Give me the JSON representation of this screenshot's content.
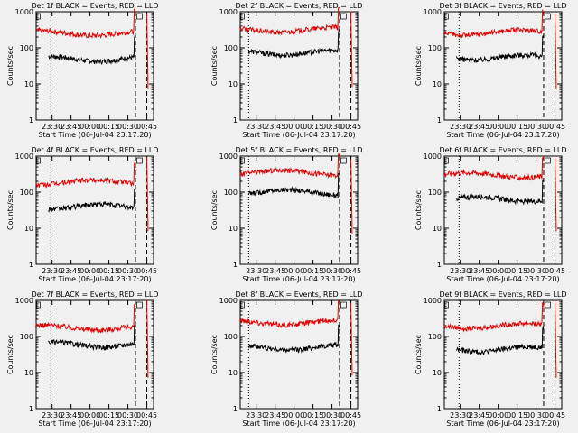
{
  "colors": {
    "events": "#000000",
    "lld": "#e00000",
    "axis": "#000000",
    "background": "#f0f0f0"
  },
  "common": {
    "ylabel": "Counts/sec",
    "xlabel": "Start Time (06-Jul-04 23:17:20)",
    "time_ticks": [
      "23:30",
      "23:45",
      "00:00",
      "00:15",
      "00:30",
      "00:45"
    ],
    "y_tick_labels": [
      "1",
      "10",
      "100",
      "1000"
    ],
    "y_log_range": [
      1,
      1000
    ],
    "x_range_minutes_from_start": [
      0,
      93
    ],
    "title_suffix": "BLACK = Events, RED = LLD"
  },
  "chart_data": [
    {
      "type": "line",
      "title": "Det 1f BLACK = Events, RED = LLD",
      "x_time_ticks": [
        "23:30",
        "23:45",
        "00:00",
        "00:15",
        "00:30",
        "00:45"
      ],
      "y_scale": "log",
      "series": [
        {
          "name": "Events",
          "color": "#000000",
          "start": "23:27",
          "end": "00:36",
          "level": 50
        },
        {
          "name": "LLD",
          "color": "#e00000",
          "start": "23:17",
          "end": "00:36",
          "level": 260
        }
      ],
      "vlines": [
        {
          "time": "23:29",
          "style": "dotted"
        },
        {
          "time": "00:36",
          "style": "dashed"
        },
        {
          "time": "00:45",
          "style": "dashed"
        }
      ]
    },
    {
      "type": "line",
      "title": "Det 2f BLACK = Events, RED = LLD",
      "x_time_ticks": [
        "23:30",
        "23:45",
        "00:00",
        "00:15",
        "00:30",
        "00:45"
      ],
      "y_scale": "log",
      "series": [
        {
          "name": "Events",
          "color": "#000000",
          "start": "23:24",
          "end": "00:36",
          "level": 75
        },
        {
          "name": "LLD",
          "color": "#e00000",
          "start": "23:17",
          "end": "00:36",
          "level": 320
        }
      ],
      "vlines": [
        {
          "time": "23:24",
          "style": "dotted"
        },
        {
          "time": "00:36",
          "style": "dashed"
        },
        {
          "time": "00:45",
          "style": "dashed"
        }
      ]
    },
    {
      "type": "line",
      "title": "Det 3f BLACK = Events, RED = LLD",
      "x_time_ticks": [
        "23:30",
        "23:45",
        "00:00",
        "00:15",
        "00:30",
        "00:45"
      ],
      "y_scale": "log",
      "series": [
        {
          "name": "Events",
          "color": "#000000",
          "start": "23:27",
          "end": "00:36",
          "level": 55
        },
        {
          "name": "LLD",
          "color": "#e00000",
          "start": "23:17",
          "end": "00:36",
          "level": 270
        }
      ],
      "vlines": [
        {
          "time": "23:29",
          "style": "dotted"
        },
        {
          "time": "00:36",
          "style": "dashed"
        },
        {
          "time": "00:45",
          "style": "dashed"
        }
      ]
    },
    {
      "type": "line",
      "title": "Det 4f BLACK = Events, RED = LLD",
      "x_time_ticks": [
        "23:30",
        "23:45",
        "00:00",
        "00:15",
        "00:30",
        "00:45"
      ],
      "y_scale": "log",
      "series": [
        {
          "name": "Events",
          "color": "#000000",
          "start": "23:27",
          "end": "00:36",
          "level": 40
        },
        {
          "name": "LLD",
          "color": "#e00000",
          "start": "23:17",
          "end": "00:36",
          "level": 190
        }
      ],
      "vlines": [
        {
          "time": "23:29",
          "style": "dotted"
        },
        {
          "time": "00:36",
          "style": "dashed"
        },
        {
          "time": "00:45",
          "style": "dashed"
        }
      ]
    },
    {
      "type": "line",
      "title": "Det 5f BLACK = Events, RED = LLD",
      "x_time_ticks": [
        "23:30",
        "23:45",
        "00:00",
        "00:15",
        "00:30",
        "00:45"
      ],
      "y_scale": "log",
      "series": [
        {
          "name": "Events",
          "color": "#000000",
          "start": "23:24",
          "end": "00:36",
          "level": 100
        },
        {
          "name": "LLD",
          "color": "#e00000",
          "start": "23:17",
          "end": "00:36",
          "level": 350
        }
      ],
      "vlines": [
        {
          "time": "23:24",
          "style": "dotted"
        },
        {
          "time": "00:36",
          "style": "dashed"
        },
        {
          "time": "00:45",
          "style": "dashed"
        }
      ]
    },
    {
      "type": "line",
      "title": "Det 6f BLACK = Events, RED = LLD",
      "x_time_ticks": [
        "23:30",
        "23:45",
        "00:00",
        "00:15",
        "00:30",
        "00:45"
      ],
      "y_scale": "log",
      "series": [
        {
          "name": "Events",
          "color": "#000000",
          "start": "23:27",
          "end": "00:36",
          "level": 65
        },
        {
          "name": "LLD",
          "color": "#e00000",
          "start": "23:17",
          "end": "00:36",
          "level": 300
        }
      ],
      "vlines": [
        {
          "time": "23:29",
          "style": "dotted"
        },
        {
          "time": "00:36",
          "style": "dashed"
        },
        {
          "time": "00:45",
          "style": "dashed"
        }
      ]
    },
    {
      "type": "line",
      "title": "Det 7f BLACK = Events, RED = LLD",
      "x_time_ticks": [
        "23:30",
        "23:45",
        "00:00",
        "00:15",
        "00:30",
        "00:45"
      ],
      "y_scale": "log",
      "series": [
        {
          "name": "Events",
          "color": "#000000",
          "start": "23:27",
          "end": "00:36",
          "level": 60
        },
        {
          "name": "LLD",
          "color": "#e00000",
          "start": "23:17",
          "end": "00:36",
          "level": 180
        }
      ],
      "vlines": [
        {
          "time": "23:29",
          "style": "dotted"
        },
        {
          "time": "00:36",
          "style": "dashed"
        },
        {
          "time": "00:45",
          "style": "dashed"
        }
      ]
    },
    {
      "type": "line",
      "title": "Det 8f BLACK = Events, RED = LLD",
      "x_time_ticks": [
        "23:30",
        "23:45",
        "00:00",
        "00:15",
        "00:30",
        "00:45"
      ],
      "y_scale": "log",
      "series": [
        {
          "name": "Events",
          "color": "#000000",
          "start": "23:24",
          "end": "00:36",
          "level": 50
        },
        {
          "name": "LLD",
          "color": "#e00000",
          "start": "23:17",
          "end": "00:36",
          "level": 250
        }
      ],
      "vlines": [
        {
          "time": "23:24",
          "style": "dotted"
        },
        {
          "time": "00:36",
          "style": "dashed"
        },
        {
          "time": "00:45",
          "style": "dashed"
        }
      ]
    },
    {
      "type": "line",
      "title": "Det 9f BLACK = Events, RED = LLD",
      "x_time_ticks": [
        "23:30",
        "23:45",
        "00:00",
        "00:15",
        "00:30",
        "00:45"
      ],
      "y_scale": "log",
      "series": [
        {
          "name": "Events",
          "color": "#000000",
          "start": "23:27",
          "end": "00:36",
          "level": 45
        },
        {
          "name": "LLD",
          "color": "#e00000",
          "start": "23:17",
          "end": "00:36",
          "level": 200
        }
      ],
      "vlines": [
        {
          "time": "23:29",
          "style": "dotted"
        },
        {
          "time": "00:36",
          "style": "dashed"
        },
        {
          "time": "00:45",
          "style": "dashed"
        }
      ]
    }
  ]
}
